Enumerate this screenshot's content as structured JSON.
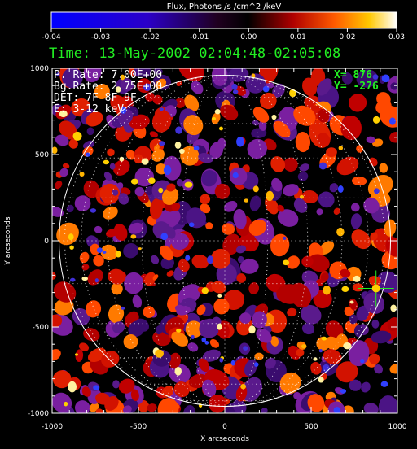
{
  "colorbar": {
    "title": "Flux, Photons /s /cm^2 /keV",
    "ticks": [
      "-0.04",
      "-0.03",
      "-0.02",
      "-0.01",
      "0.00",
      "0.01",
      "0.02",
      "0.03"
    ]
  },
  "time_label": "Time: 13-May-2002 02:04:48-02:05:08",
  "info": {
    "p_rate": "P. Rate:  7.00E+00",
    "bg_rate": "Bg.Rate:  2.75E+00",
    "det": "DET: 7F 8F 9F",
    "energy": "E: 3-12 keV"
  },
  "cursor": {
    "x_text": "X=  876",
    "y_text": "Y= -276"
  },
  "chart_data": {
    "type": "heatmap",
    "title": "",
    "xlabel": "X arcseconds",
    "ylabel": "Y arcseconds",
    "xlim": [
      -1000,
      1000
    ],
    "ylim": [
      -1000,
      1000
    ],
    "x_ticks": [
      -1000,
      -500,
      0,
      500,
      1000
    ],
    "y_ticks": [
      -1000,
      -500,
      0,
      500,
      1000
    ],
    "colorbar_range": [
      -0.04,
      0.03
    ],
    "colormap": "hot-blue",
    "solar_disk_radius_arcsec": 960,
    "grid": "heliographic dotted",
    "cursor_position": {
      "x": 876,
      "y": -276
    }
  },
  "colors": {
    "cursor": "#22ee22",
    "limb": "#ffffff",
    "background": "#000000"
  }
}
